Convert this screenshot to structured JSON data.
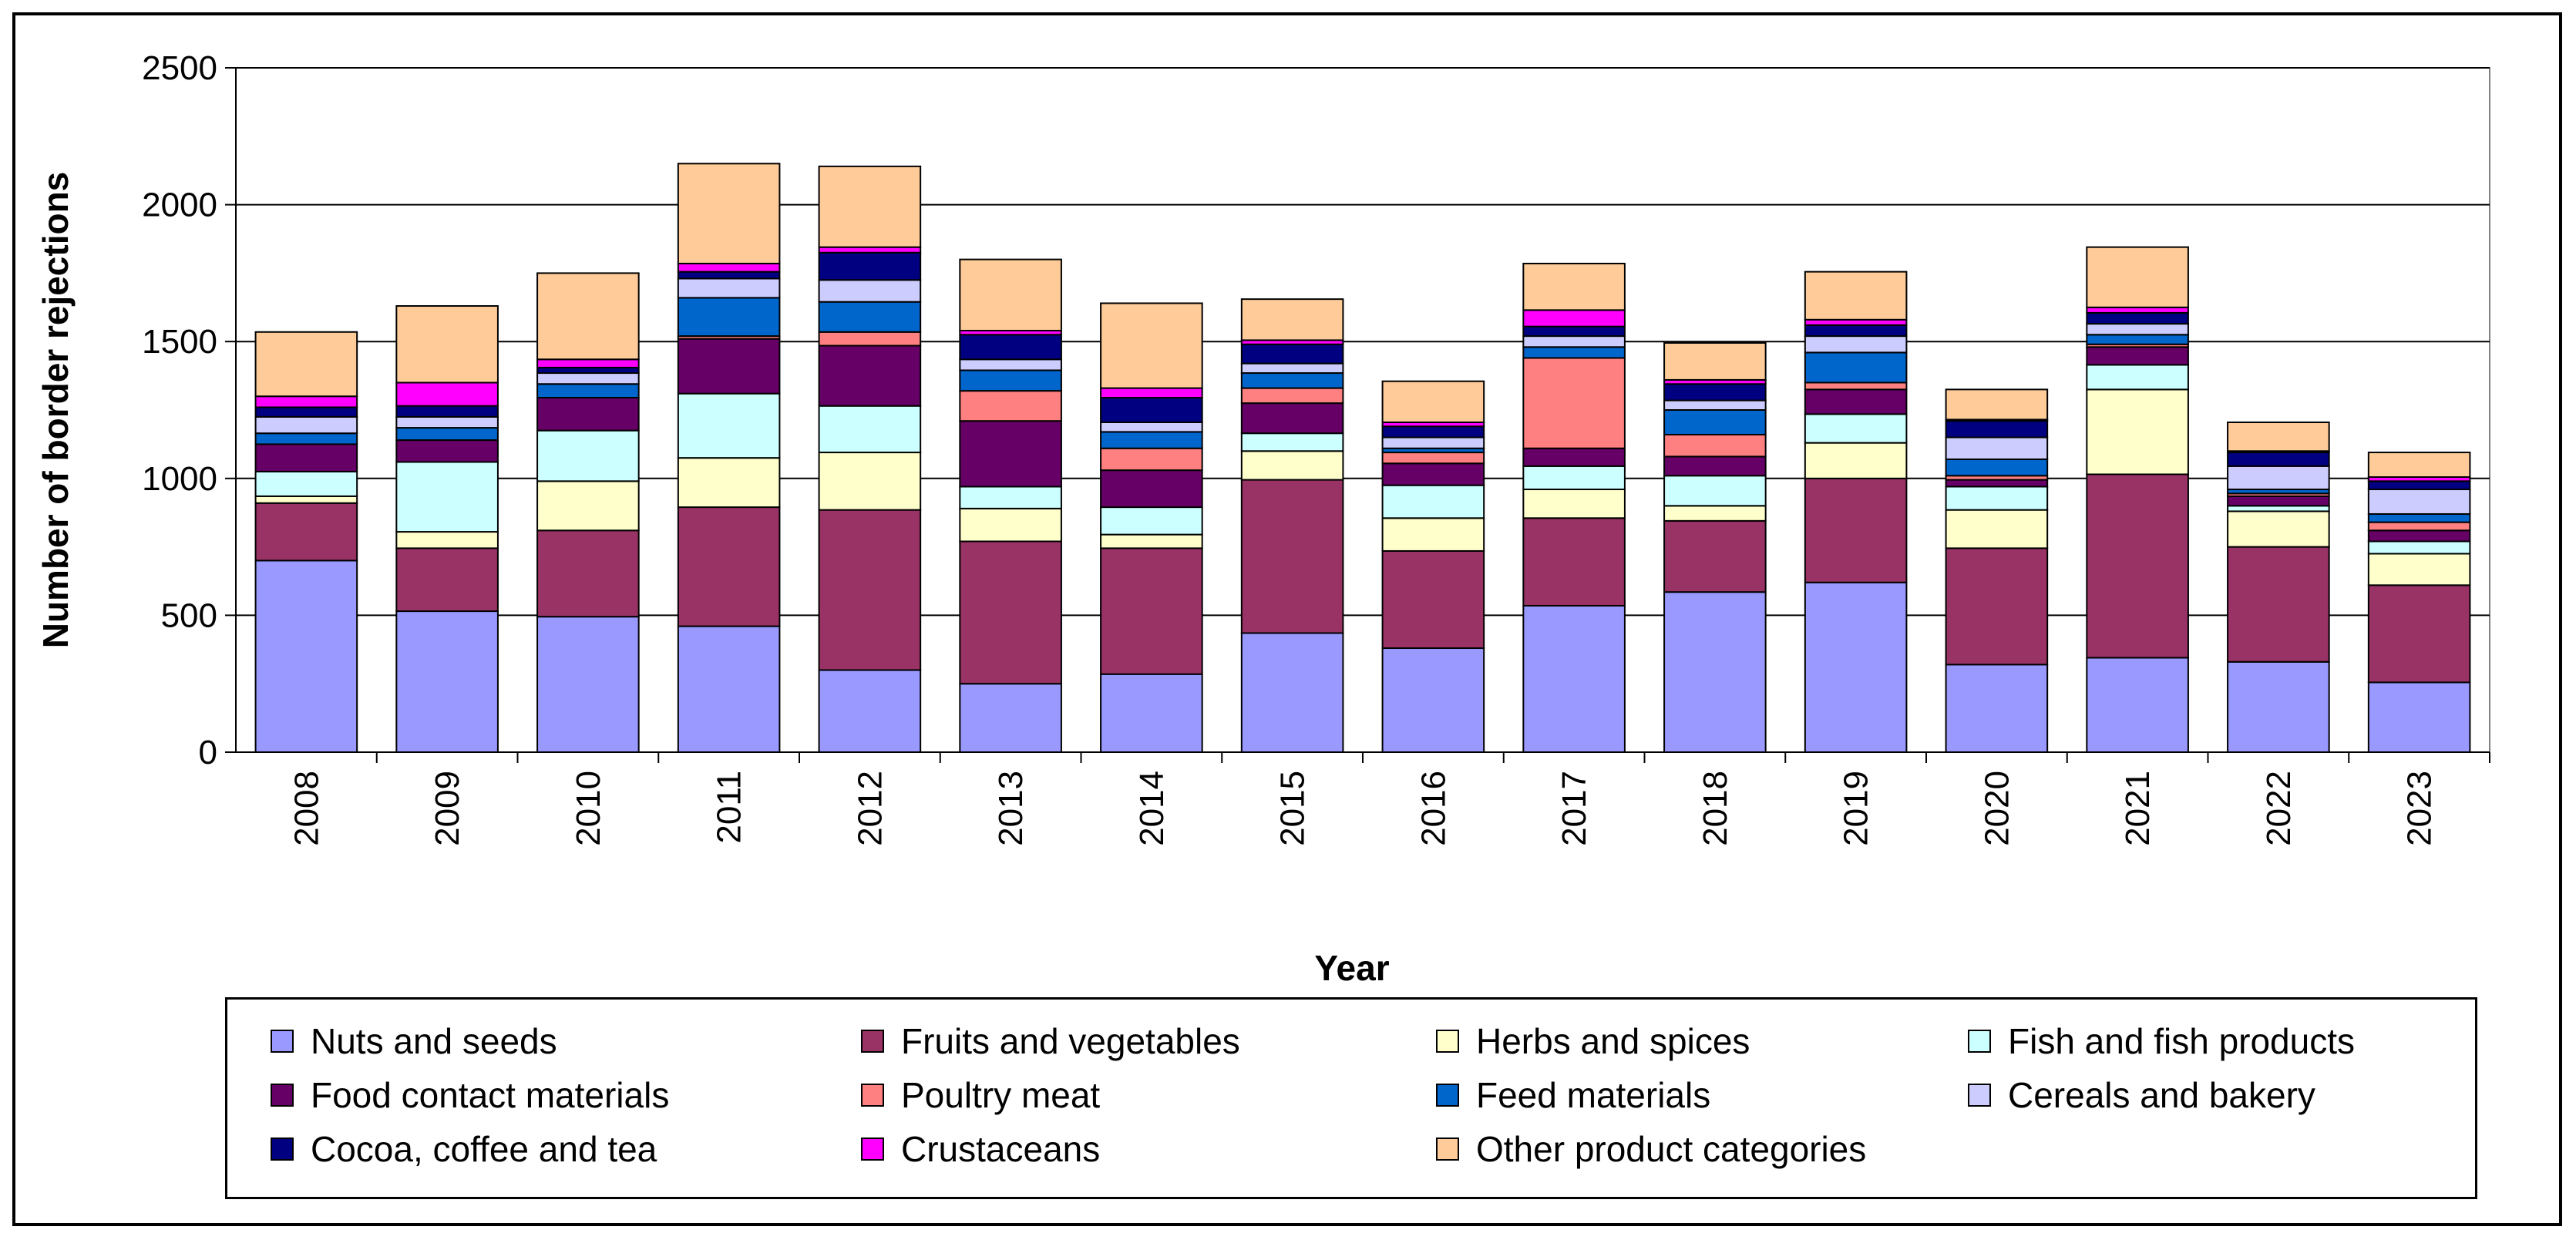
{
  "chart_data": {
    "type": "bar",
    "stacked": true,
    "title": "",
    "xlabel": "Year",
    "ylabel": "Number of border rejections",
    "ylim": [
      0,
      2500
    ],
    "yticks": [
      0,
      500,
      1000,
      1500,
      2000,
      2500
    ],
    "grid": true,
    "legend_position": "bottom",
    "categories": [
      "2008",
      "2009",
      "2010",
      "2011",
      "2012",
      "2013",
      "2014",
      "2015",
      "2016",
      "2017",
      "2018",
      "2019",
      "2020",
      "2021",
      "2022",
      "2023"
    ],
    "series": [
      {
        "name": "Nuts and seeds",
        "color": "#9999FF",
        "values": [
          700,
          515,
          495,
          460,
          300,
          250,
          285,
          435,
          380,
          535,
          585,
          620,
          320,
          345,
          330,
          255
        ]
      },
      {
        "name": "Fruits and vegetables",
        "color": "#993366",
        "values": [
          210,
          230,
          315,
          435,
          585,
          520,
          460,
          560,
          355,
          320,
          260,
          380,
          425,
          670,
          420,
          355
        ]
      },
      {
        "name": "Herbs and spices",
        "color": "#FFFFCC",
        "values": [
          25,
          60,
          180,
          180,
          210,
          120,
          50,
          105,
          120,
          105,
          55,
          130,
          140,
          310,
          130,
          115
        ]
      },
      {
        "name": "Fish and fish products",
        "color": "#CCFFFF",
        "values": [
          90,
          255,
          185,
          235,
          170,
          80,
          100,
          65,
          120,
          85,
          110,
          105,
          85,
          90,
          20,
          45
        ]
      },
      {
        "name": "Food contact materials",
        "color": "#660066",
        "values": [
          100,
          80,
          120,
          200,
          220,
          240,
          135,
          110,
          80,
          65,
          70,
          90,
          25,
          65,
          35,
          40
        ]
      },
      {
        "name": "Poultry meat",
        "color": "#FF8080",
        "values": [
          0,
          0,
          0,
          10,
          50,
          110,
          80,
          55,
          40,
          330,
          80,
          25,
          15,
          10,
          10,
          30
        ]
      },
      {
        "name": "Feed materials",
        "color": "#0066CC",
        "values": [
          40,
          45,
          50,
          140,
          110,
          75,
          60,
          55,
          15,
          40,
          90,
          110,
          60,
          35,
          15,
          30
        ]
      },
      {
        "name": "Cereals and bakery",
        "color": "#CCCCFF",
        "values": [
          60,
          40,
          40,
          70,
          80,
          40,
          35,
          35,
          40,
          40,
          35,
          60,
          80,
          40,
          85,
          90
        ]
      },
      {
        "name": "Cocoa, coffee and tea",
        "color": "#000080",
        "values": [
          35,
          40,
          20,
          25,
          100,
          90,
          90,
          70,
          40,
          35,
          60,
          40,
          60,
          40,
          50,
          30
        ]
      },
      {
        "name": "Crustaceans",
        "color": "#FF00FF",
        "values": [
          40,
          85,
          30,
          30,
          20,
          15,
          35,
          15,
          15,
          60,
          15,
          20,
          5,
          20,
          5,
          15
        ]
      },
      {
        "name": "Other product categories",
        "color": "#FFCC99",
        "values": [
          235,
          280,
          315,
          365,
          295,
          260,
          310,
          150,
          150,
          170,
          135,
          175,
          110,
          220,
          105,
          90
        ]
      }
    ]
  }
}
